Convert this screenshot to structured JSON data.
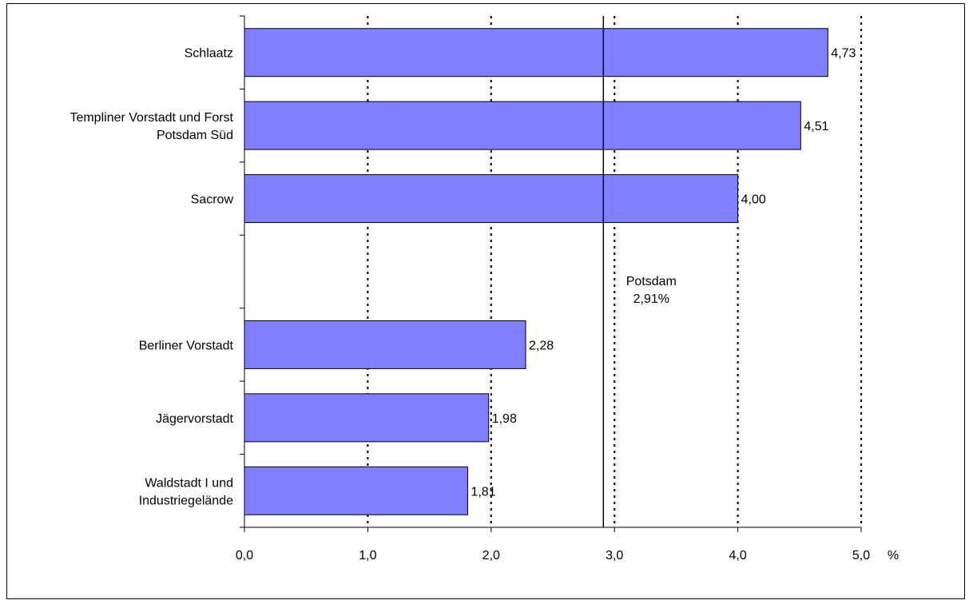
{
  "chart_data": {
    "type": "bar",
    "orientation": "horizontal",
    "categories": [
      [
        "Schlaatz"
      ],
      [
        "Templiner Vorstadt und Forst",
        "Potsdam Süd"
      ],
      [
        "Sacrow"
      ],
      [
        ""
      ],
      [
        "Berliner Vorstadt"
      ],
      [
        "Jägervorstadt"
      ],
      [
        "Waldstadt I und",
        "Industriegelände"
      ]
    ],
    "values": [
      4.73,
      4.51,
      4.0,
      null,
      2.28,
      1.98,
      1.81
    ],
    "value_labels": [
      "4,73",
      "4,51",
      "4,00",
      "",
      "2,28",
      "1,98",
      "1,81"
    ],
    "xlim": [
      0,
      5
    ],
    "x_ticks": [
      0,
      1,
      2,
      3,
      4,
      5
    ],
    "x_tick_labels": [
      "0,0",
      "1,0",
      "2,0",
      "3,0",
      "4,0",
      "5,0"
    ],
    "x_unit": "%",
    "reference_line": {
      "value": 2.91,
      "label_lines": [
        "Potsdam",
        "2,91%"
      ]
    },
    "grid": "vertical-dotted",
    "bar_color": "#8080ff",
    "legend": "none"
  }
}
